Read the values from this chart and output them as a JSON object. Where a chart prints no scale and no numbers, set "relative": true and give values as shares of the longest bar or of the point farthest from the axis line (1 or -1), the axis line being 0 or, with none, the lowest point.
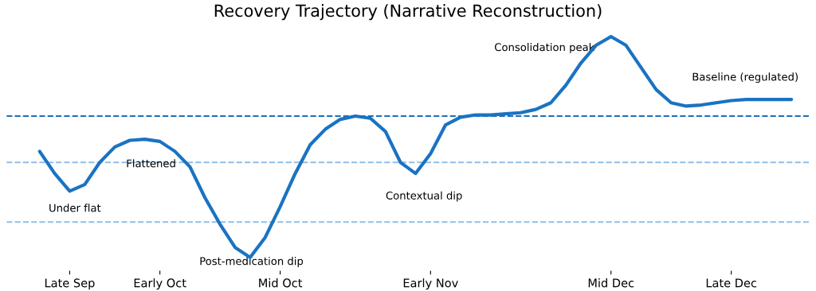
{
  "chart_data": {
    "type": "line",
    "title": "Recovery Trajectory (Narrative Reconstruction)",
    "relative": true,
    "categories": [
      null,
      null,
      "Late Sep",
      null,
      null,
      null,
      null,
      null,
      "Early Oct",
      null,
      null,
      null,
      null,
      null,
      null,
      null,
      "Mid Oct",
      null,
      null,
      null,
      null,
      null,
      null,
      null,
      null,
      null,
      "Early Nov",
      null,
      null,
      null,
      null,
      null,
      null,
      null,
      null,
      null,
      null,
      null,
      "Mid Dec",
      null,
      null,
      null,
      null,
      null,
      null,
      null,
      "Late Dec",
      null,
      null,
      null,
      null
    ],
    "series": [
      {
        "color": "#1a73c2",
        "values": [
          0.48,
          0.38,
          0.3,
          0.33,
          0.43,
          0.5,
          0.53,
          0.535,
          0.525,
          0.48,
          0.41,
          0.27,
          0.15,
          0.045,
          0.0,
          0.09,
          0.23,
          0.38,
          0.51,
          0.58,
          0.625,
          0.64,
          0.63,
          0.57,
          0.43,
          0.38,
          0.47,
          0.6,
          0.635,
          0.645,
          0.645,
          0.65,
          0.655,
          0.67,
          0.7,
          0.78,
          0.88,
          0.96,
          1.0,
          0.96,
          0.86,
          0.76,
          0.7,
          0.685,
          0.69,
          0.7,
          0.71,
          0.715,
          0.715,
          0.715,
          0.715
        ]
      }
    ],
    "ref_lines": [
      {
        "axis": "y",
        "value": 0.64,
        "color": "#1f6fb5",
        "line_style": "dashed"
      },
      {
        "axis": "y",
        "value": 0.43,
        "color": "#8fbfe6",
        "line_style": "dashed"
      },
      {
        "axis": "y",
        "value": 0.16,
        "color": "#8fbfe6",
        "line_style": "dashed"
      }
    ],
    "annotations": [
      "Under flat",
      "Flattened",
      "Post-medication dip",
      "Contextual dip",
      "Consolidation peak",
      "Baseline (regulated)"
    ],
    "grid": false,
    "legend": false,
    "line_style": "solid"
  }
}
